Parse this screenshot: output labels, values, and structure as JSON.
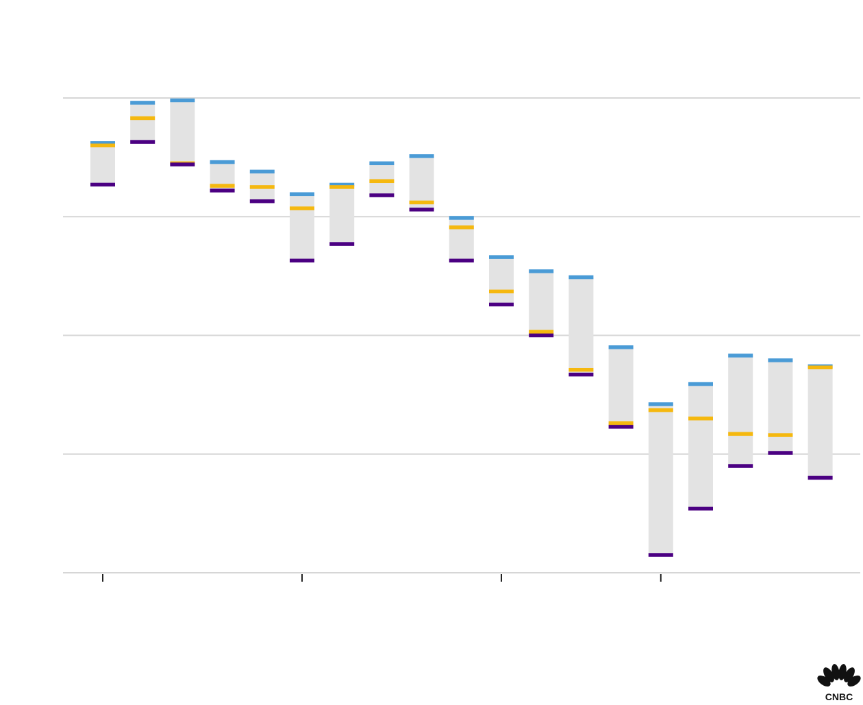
{
  "chart_data": {
    "type": "range-bar",
    "title": "",
    "xlabel": "",
    "ylabel": "",
    "ylim": [
      0,
      4
    ],
    "yticks": [
      0,
      1,
      2,
      3,
      4
    ],
    "grid": true,
    "x_major_ticks": [
      0,
      5,
      10,
      14
    ],
    "marker_series": [
      {
        "key": "blue",
        "color": "#4a9bd6"
      },
      {
        "key": "yellow",
        "color": "#f5b80f"
      },
      {
        "key": "purple",
        "color": "#4b0082"
      }
    ],
    "bars": [
      {
        "top": 3.62,
        "bottom": 3.27,
        "blue": 3.62,
        "yellow": 3.6,
        "purple": 3.27
      },
      {
        "top": 3.96,
        "bottom": 3.63,
        "blue": 3.96,
        "yellow": 3.83,
        "purple": 3.63
      },
      {
        "top": 3.98,
        "bottom": 3.44,
        "blue": 3.98,
        "yellow": 3.45,
        "purple": 3.44
      },
      {
        "top": 3.46,
        "bottom": 3.22,
        "blue": 3.46,
        "yellow": 3.26,
        "purple": 3.22
      },
      {
        "top": 3.38,
        "bottom": 3.13,
        "blue": 3.38,
        "yellow": 3.25,
        "purple": 3.13
      },
      {
        "top": 3.19,
        "bottom": 2.63,
        "blue": 3.19,
        "yellow": 3.07,
        "purple": 2.63
      },
      {
        "top": 3.27,
        "bottom": 2.77,
        "blue": 3.27,
        "yellow": 3.25,
        "purple": 2.77
      },
      {
        "top": 3.45,
        "bottom": 3.18,
        "blue": 3.45,
        "yellow": 3.3,
        "purple": 3.18
      },
      {
        "top": 3.51,
        "bottom": 3.06,
        "blue": 3.51,
        "yellow": 3.12,
        "purple": 3.06
      },
      {
        "top": 2.99,
        "bottom": 2.63,
        "blue": 2.99,
        "yellow": 2.91,
        "purple": 2.63
      },
      {
        "top": 2.66,
        "bottom": 2.26,
        "blue": 2.66,
        "yellow": 2.37,
        "purple": 2.26
      },
      {
        "top": 2.54,
        "bottom": 2.0,
        "blue": 2.54,
        "yellow": 2.03,
        "purple": 2.0
      },
      {
        "top": 2.49,
        "bottom": 1.67,
        "blue": 2.49,
        "yellow": 1.71,
        "purple": 1.67
      },
      {
        "top": 1.9,
        "bottom": 1.23,
        "blue": 1.9,
        "yellow": 1.26,
        "purple": 1.23
      },
      {
        "top": 1.42,
        "bottom": 0.15,
        "blue": 1.42,
        "yellow": 1.37,
        "purple": 0.15
      },
      {
        "top": 1.59,
        "bottom": 0.54,
        "blue": 1.59,
        "yellow": 1.3,
        "purple": 0.54
      },
      {
        "top": 1.83,
        "bottom": 0.9,
        "blue": 1.83,
        "yellow": 1.17,
        "purple": 0.9
      },
      {
        "top": 1.79,
        "bottom": 1.01,
        "blue": 1.79,
        "yellow": 1.16,
        "purple": 1.01
      },
      {
        "top": 1.74,
        "bottom": 0.8,
        "blue": 1.74,
        "yellow": 1.73,
        "purple": 0.8
      }
    ]
  },
  "logo": {
    "text": "CNBC",
    "feather_colors": [
      "#111111",
      "#111111",
      "#111111",
      "#111111",
      "#111111",
      "#111111"
    ]
  }
}
